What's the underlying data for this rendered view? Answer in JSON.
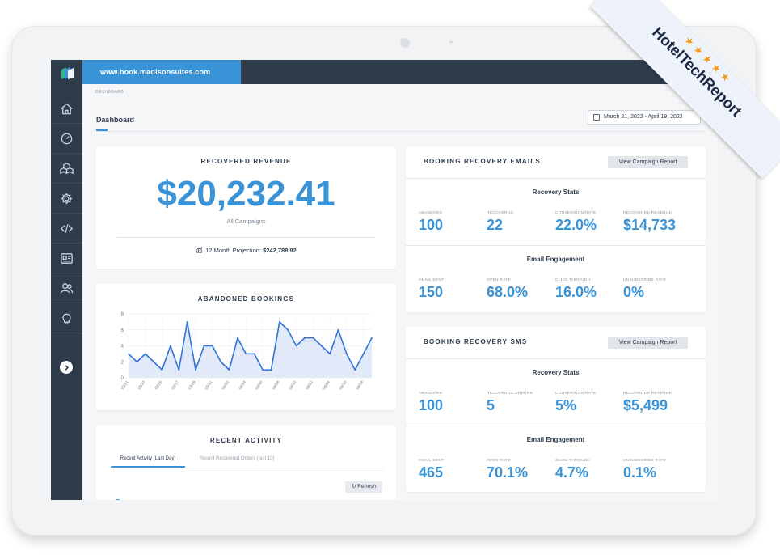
{
  "app": {
    "site_url": "www.book.madisonsuites.com",
    "breadcrumb": "DASHBOARD",
    "page_title": "Dashboard",
    "date_range": "March 21, 2022 - April 19, 2022"
  },
  "sidebar": {
    "items": [
      {
        "icon": "home-icon"
      },
      {
        "icon": "gauge-icon"
      },
      {
        "icon": "boxes-icon"
      },
      {
        "icon": "gear-icon"
      },
      {
        "icon": "code-icon"
      },
      {
        "icon": "newspaper-icon"
      },
      {
        "icon": "users-icon"
      },
      {
        "icon": "lightbulb-icon"
      }
    ],
    "expand_icon": "chevron-right-icon"
  },
  "recovered_revenue": {
    "title": "RECOVERED REVENUE",
    "amount": "$20,232.41",
    "subtitle": "All Campaigns",
    "projection_label": "12 Month Projection: ",
    "projection_value": "$242,788.92"
  },
  "abandoned_bookings": {
    "title": "ABANDONED BOOKINGS"
  },
  "chart_data": {
    "type": "area",
    "title": "ABANDONED BOOKINGS",
    "xlabel": "",
    "ylabel": "",
    "ylim": [
      0,
      8
    ],
    "yticks": [
      "0",
      "2",
      "4",
      "6",
      "8"
    ],
    "x_tick_labels": [
      "03/21",
      "03/23",
      "03/25",
      "03/27",
      "03/29",
      "03/31",
      "04/02",
      "04/04",
      "04/06",
      "04/08",
      "04/10",
      "04/12",
      "04/14",
      "04/16",
      "04/18"
    ],
    "x": [
      "03/21",
      "03/22",
      "03/23",
      "03/24",
      "03/25",
      "03/26",
      "03/27",
      "03/28",
      "03/29",
      "03/30",
      "03/31",
      "04/01",
      "04/02",
      "04/03",
      "04/04",
      "04/05",
      "04/06",
      "04/07",
      "04/08",
      "04/09",
      "04/10",
      "04/11",
      "04/12",
      "04/13",
      "04/14",
      "04/15",
      "04/16",
      "04/17",
      "04/18",
      "04/19"
    ],
    "values": [
      3,
      2,
      3,
      2,
      1,
      4,
      1,
      7,
      1,
      4,
      4,
      2,
      1,
      5,
      3,
      3,
      1,
      1,
      7,
      6,
      4,
      5,
      5,
      4,
      3,
      6,
      3,
      1,
      3,
      5
    ],
    "grid": true,
    "line_color": "#2f73d9",
    "fill_color": "#dde6f8"
  },
  "recent_activity": {
    "title": "RECENT ACTIVITY",
    "tab_active": "Recent Activity (Last Day)",
    "tab_inactive": "Recent Recovered Orders (last 10)",
    "refresh_label": "Refresh"
  },
  "booking_emails": {
    "title": "BOOKING RECOVERY EMAILS",
    "report_button": "View Campaign Report",
    "recovery_stats_title": "Recovery Stats",
    "recovery_stats": [
      {
        "label": "ABANDONS",
        "value": "100"
      },
      {
        "label": "RECOVERED",
        "value": "22"
      },
      {
        "label": "CONVERSION RATE",
        "value": "22.0%"
      },
      {
        "label": "RECOVERED REVENUE",
        "value": "$14,733"
      }
    ],
    "engagement_title": "Email Engagement",
    "engagement": [
      {
        "label": "EMAIL SENT",
        "value": "150"
      },
      {
        "label": "OPEN RATE",
        "value": "68.0%"
      },
      {
        "label": "CLICK THROUGH",
        "value": "16.0%"
      },
      {
        "label": "UNSUBSCRIBE RATE",
        "value": "0%"
      }
    ]
  },
  "booking_sms": {
    "title": "BOOKING RECOVERY SMS",
    "report_button": "View Campaign Report",
    "recovery_stats_title": "Recovery Stats",
    "recovery_stats": [
      {
        "label": "ABANDONS",
        "value": "100"
      },
      {
        "label": "RECOVERED ORDERS",
        "value": "5"
      },
      {
        "label": "CONVERSION RATE",
        "value": "5%"
      },
      {
        "label": "RECOVERED REVENUE",
        "value": "$5,499"
      }
    ],
    "engagement_title": "Email Engagement",
    "engagement": [
      {
        "label": "EMAIL SENT",
        "value": "465"
      },
      {
        "label": "OPEN RATE",
        "value": "70.1%"
      },
      {
        "label": "CLICK THROUGH",
        "value": "4.7%"
      },
      {
        "label": "UNSUBSCRIBE RATE",
        "value": "0.1%"
      }
    ]
  },
  "badge": {
    "text": "HotelTechReport",
    "stars": "★★★★★",
    "star_color": "#f39a1f"
  }
}
